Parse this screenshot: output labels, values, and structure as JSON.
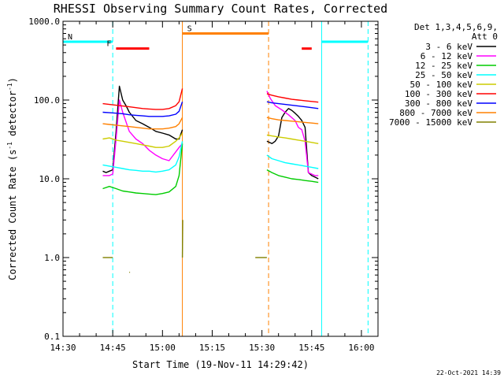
{
  "chart_data": {
    "type": "line",
    "title": "RHESSI Observing Summary Count Rates, Corrected",
    "xlabel": "Start Time (19-Nov-11 14:29:42)",
    "ylabel": "Corrected Count Rate (s-1 detector-1)",
    "ylabel_main": "Corrected Count Rate (s",
    "ylabel_sup1": "-1",
    "ylabel_mid": " detector",
    "ylabel_sup2": "-1",
    "ylabel_end": ")",
    "y_scale": "log",
    "xlim_minutes": [
      0,
      95
    ],
    "ylim": [
      0.1,
      1000
    ],
    "x_tick_labels": [
      "14:30",
      "14:45",
      "15:00",
      "15:15",
      "15:30",
      "15:45",
      "16:00"
    ],
    "x_tick_minutes": [
      0,
      15,
      30,
      45,
      60,
      75,
      90
    ],
    "y_tick_labels": [
      "0.1",
      "1.0",
      "10.0",
      "100.0",
      "1000.0"
    ],
    "y_tick_values": [
      0.1,
      1,
      10,
      100,
      1000
    ],
    "legend_header": [
      "Det 1,3,4,5,6,9,",
      "Att 0"
    ],
    "footer": "22-Oct-2021 14:39",
    "grid": false,
    "legend_placement": "right",
    "series": [
      {
        "name": "3 - 6 keV",
        "color": "#000000",
        "segments": [
          [
            [
              12.0,
              12.5
            ],
            [
              13.0,
              12.0
            ],
            [
              14.0,
              12.5
            ],
            [
              15.0,
              13.0
            ],
            [
              16.0,
              40.0
            ],
            [
              17.0,
              150.0
            ],
            [
              18.0,
              100.0
            ],
            [
              19.0,
              85.0
            ],
            [
              20.0,
              70.0
            ],
            [
              22.0,
              55.0
            ],
            [
              24.0,
              50.0
            ],
            [
              26.0,
              45.0
            ],
            [
              28.0,
              40.0
            ],
            [
              30.0,
              38.0
            ],
            [
              32.0,
              36.0
            ],
            [
              34.0,
              32.0
            ],
            [
              35.0,
              32.0
            ],
            [
              36.0,
              42.0
            ]
          ],
          [
            [
              61.5,
              30.0
            ],
            [
              63.0,
              28.0
            ],
            [
              64.0,
              30.0
            ],
            [
              65.0,
              35.0
            ],
            [
              66.0,
              60.0
            ],
            [
              67.0,
              70.0
            ],
            [
              68.0,
              78.0
            ],
            [
              69.0,
              74.0
            ],
            [
              70.0,
              68.0
            ],
            [
              71.0,
              62.0
            ],
            [
              72.0,
              55.0
            ],
            [
              73.0,
              45.0
            ],
            [
              74.0,
              12.0
            ],
            [
              75.0,
              11.0
            ],
            [
              76.0,
              10.5
            ],
            [
              77.0,
              10.0
            ]
          ]
        ]
      },
      {
        "name": "6 - 12 keV",
        "color": "#ff00ff",
        "segments": [
          [
            [
              12.0,
              11.0
            ],
            [
              14.0,
              11.0
            ],
            [
              15.0,
              11.5
            ],
            [
              16.0,
              32.0
            ],
            [
              17.0,
              100.0
            ],
            [
              18.0,
              70.0
            ],
            [
              20.0,
              40.0
            ],
            [
              22.0,
              32.0
            ],
            [
              24.0,
              28.0
            ],
            [
              26.0,
              23.0
            ],
            [
              28.0,
              20.0
            ],
            [
              30.0,
              18.0
            ],
            [
              32.0,
              17.0
            ],
            [
              34.0,
              22.0
            ],
            [
              35.0,
              25.0
            ],
            [
              36.0,
              28.0
            ]
          ],
          [
            [
              61.5,
              130.0
            ],
            [
              62.5,
              105.0
            ],
            [
              64.0,
              85.0
            ],
            [
              66.0,
              75.0
            ],
            [
              68.0,
              65.0
            ],
            [
              70.0,
              55.0
            ],
            [
              71.0,
              45.0
            ],
            [
              72.0,
              42.0
            ],
            [
              73.0,
              30.0
            ],
            [
              74.0,
              12.0
            ],
            [
              76.0,
              11.0
            ],
            [
              77.0,
              11.0
            ]
          ]
        ]
      },
      {
        "name": "12 - 25 keV",
        "color": "#00cc00",
        "segments": [
          [
            [
              12.0,
              7.5
            ],
            [
              14.0,
              8.0
            ],
            [
              16.0,
              7.5
            ],
            [
              18.0,
              7.0
            ],
            [
              20.0,
              6.8
            ],
            [
              22.0,
              6.6
            ],
            [
              24.0,
              6.5
            ],
            [
              26.0,
              6.4
            ],
            [
              28.0,
              6.3
            ],
            [
              30.0,
              6.5
            ],
            [
              32.0,
              6.8
            ],
            [
              34.0,
              8.0
            ],
            [
              35.0,
              11.0
            ],
            [
              36.0,
              28.0
            ]
          ],
          [
            [
              61.5,
              13.0
            ],
            [
              63.0,
              12.0
            ],
            [
              65.0,
              11.0
            ],
            [
              67.0,
              10.5
            ],
            [
              69.0,
              10.0
            ],
            [
              71.0,
              9.8
            ],
            [
              73.0,
              9.5
            ],
            [
              75.0,
              9.3
            ],
            [
              77.0,
              9.0
            ]
          ]
        ]
      },
      {
        "name": "25 - 50 keV",
        "color": "#00ffff",
        "segments": [
          [
            [
              12.0,
              15.0
            ],
            [
              14.0,
              14.5
            ],
            [
              16.0,
              14.0
            ],
            [
              18.0,
              13.5
            ],
            [
              20.0,
              13.0
            ],
            [
              22.0,
              12.8
            ],
            [
              24.0,
              12.5
            ],
            [
              26.0,
              12.5
            ],
            [
              28.0,
              12.2
            ],
            [
              30.0,
              12.5
            ],
            [
              32.0,
              13.0
            ],
            [
              34.0,
              15.0
            ],
            [
              35.0,
              19.0
            ],
            [
              36.0,
              30.0
            ]
          ],
          [
            [
              61.5,
              20.0
            ],
            [
              63.0,
              18.0
            ],
            [
              65.0,
              17.0
            ],
            [
              67.0,
              16.0
            ],
            [
              69.0,
              15.5
            ],
            [
              71.0,
              15.0
            ],
            [
              73.0,
              14.5
            ],
            [
              75.0,
              14.0
            ],
            [
              77.0,
              13.5
            ]
          ]
        ]
      },
      {
        "name": "50 - 100 keV",
        "color": "#cccc00",
        "segments": [
          [
            [
              12.0,
              32.0
            ],
            [
              14.0,
              33.0
            ],
            [
              16.0,
              31.0
            ],
            [
              18.0,
              30.0
            ],
            [
              20.0,
              29.0
            ],
            [
              22.0,
              28.0
            ],
            [
              24.0,
              27.0
            ],
            [
              26.0,
              26.0
            ],
            [
              28.0,
              25.0
            ],
            [
              30.0,
              25.0
            ],
            [
              32.0,
              26.0
            ],
            [
              34.0,
              30.0
            ],
            [
              35.0,
              33.0
            ],
            [
              36.0,
              38.0
            ]
          ],
          [
            [
              61.5,
              36.0
            ],
            [
              63.0,
              35.0
            ],
            [
              65.0,
              34.0
            ],
            [
              67.0,
              33.0
            ],
            [
              69.0,
              32.0
            ],
            [
              71.0,
              31.0
            ],
            [
              73.0,
              30.0
            ],
            [
              75.0,
              29.0
            ],
            [
              77.0,
              28.0
            ]
          ]
        ]
      },
      {
        "name": "100 - 300 keV",
        "color": "#ff0000",
        "segments": [
          [
            [
              12.0,
              90.0
            ],
            [
              14.0,
              88.0
            ],
            [
              16.0,
              86.0
            ],
            [
              18.0,
              84.0
            ],
            [
              20.0,
              82.0
            ],
            [
              22.0,
              80.0
            ],
            [
              24.0,
              78.0
            ],
            [
              26.0,
              77.0
            ],
            [
              28.0,
              76.0
            ],
            [
              30.0,
              76.0
            ],
            [
              32.0,
              78.0
            ],
            [
              34.0,
              85.0
            ],
            [
              35.0,
              95.0
            ],
            [
              36.0,
              140.0
            ]
          ],
          [
            [
              61.5,
              120.0
            ],
            [
              63.0,
              115.0
            ],
            [
              65.0,
              110.0
            ],
            [
              67.0,
              106.0
            ],
            [
              69.0,
              102.0
            ],
            [
              71.0,
              100.0
            ],
            [
              73.0,
              98.0
            ],
            [
              75.0,
              96.0
            ],
            [
              77.0,
              94.0
            ]
          ]
        ]
      },
      {
        "name": "300 - 800 keV",
        "color": "#0000ff",
        "segments": [
          [
            [
              12.0,
              70.0
            ],
            [
              14.0,
              69.0
            ],
            [
              16.0,
              68.0
            ],
            [
              18.0,
              67.0
            ],
            [
              20.0,
              65.0
            ],
            [
              22.0,
              64.0
            ],
            [
              24.0,
              63.0
            ],
            [
              26.0,
              62.0
            ],
            [
              28.0,
              62.0
            ],
            [
              30.0,
              62.0
            ],
            [
              32.0,
              63.0
            ],
            [
              34.0,
              66.0
            ],
            [
              35.0,
              72.0
            ],
            [
              36.0,
              95.0
            ]
          ],
          [
            [
              61.5,
              95.0
            ],
            [
              63.0,
              92.0
            ],
            [
              65.0,
              90.0
            ],
            [
              67.0,
              88.0
            ],
            [
              69.0,
              86.0
            ],
            [
              71.0,
              84.0
            ],
            [
              73.0,
              82.0
            ],
            [
              75.0,
              80.0
            ],
            [
              77.0,
              78.0
            ]
          ]
        ]
      },
      {
        "name": "800 - 7000 keV",
        "color": "#ff8000",
        "segments": [
          [
            [
              12.0,
              50.0
            ],
            [
              14.0,
              49.0
            ],
            [
              16.0,
              48.0
            ],
            [
              18.0,
              47.0
            ],
            [
              20.0,
              46.0
            ],
            [
              22.0,
              45.0
            ],
            [
              24.0,
              44.0
            ],
            [
              26.0,
              43.0
            ],
            [
              28.0,
              43.0
            ],
            [
              30.0,
              43.0
            ],
            [
              32.0,
              44.0
            ],
            [
              34.0,
              46.0
            ],
            [
              35.0,
              50.0
            ],
            [
              36.0,
              60.0
            ]
          ],
          [
            [
              61.5,
              60.0
            ],
            [
              63.0,
              58.0
            ],
            [
              65.0,
              56.0
            ],
            [
              67.0,
              55.0
            ],
            [
              69.0,
              54.0
            ],
            [
              71.0,
              53.0
            ],
            [
              73.0,
              52.0
            ],
            [
              75.0,
              51.0
            ],
            [
              77.0,
              50.0
            ]
          ]
        ]
      },
      {
        "name": "7000 - 15000 keV",
        "color": "#808000",
        "segments": [
          [
            [
              12.0,
              1.0
            ],
            [
              13.0,
              1.0
            ],
            [
              14.0,
              1.0
            ],
            [
              15.0,
              1.0
            ]
          ],
          [
            [
              20.0,
              0.65
            ],
            [
              20.2,
              0.65
            ]
          ],
          [
            [
              36.0,
              1.0
            ],
            [
              36.1,
              3.0
            ]
          ],
          [
            [
              58.0,
              1.0
            ],
            [
              60.0,
              1.0
            ],
            [
              61.5,
              1.0
            ]
          ]
        ]
      }
    ],
    "flags": [
      {
        "label": "N",
        "color": "#00ffff",
        "start": 0,
        "end": 15,
        "level": 550
      },
      {
        "label": "",
        "color": "#00ffff",
        "start": 78,
        "end": 92,
        "level": 550
      },
      {
        "label": "F",
        "color": "#ff0000",
        "start": 16,
        "end": 26,
        "level": 450
      },
      {
        "label": "",
        "color": "#ff0000",
        "start": 72,
        "end": 75,
        "level": 450
      },
      {
        "label": "S",
        "color": "#ff8000",
        "start": 36,
        "end": 62,
        "level": 700
      }
    ],
    "boundaries": [
      {
        "t": 0,
        "color": "#00ffff",
        "style": "dashed"
      },
      {
        "t": 15,
        "color": "#00ffff",
        "style": "dashed"
      },
      {
        "t": 36,
        "color": "#ff8000",
        "style": "solid"
      },
      {
        "t": 62,
        "color": "#ff8000",
        "style": "dashed"
      },
      {
        "t": 78,
        "color": "#00ffff",
        "style": "solid"
      },
      {
        "t": 92,
        "color": "#00ffff",
        "style": "dashed"
      }
    ]
  }
}
